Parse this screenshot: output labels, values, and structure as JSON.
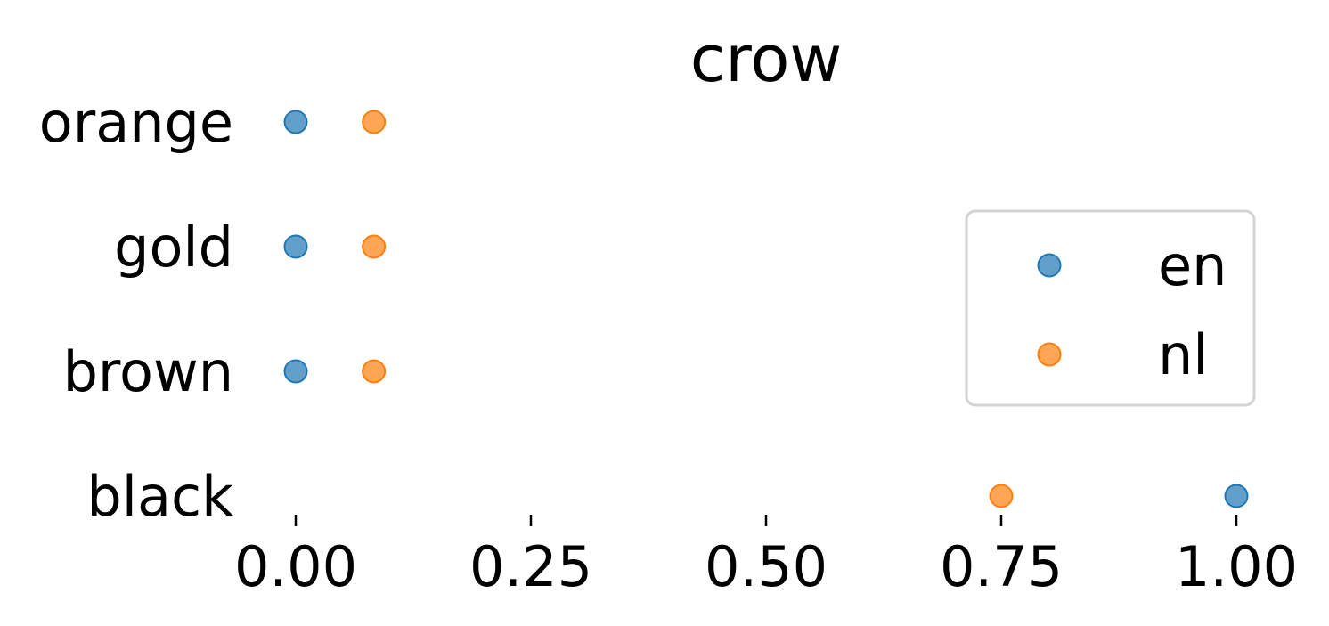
{
  "chart_data": {
    "type": "scatter",
    "title": "crow",
    "xlabel": "",
    "ylabel": "",
    "xlim": [
      0,
      1
    ],
    "x_ticks": [
      "0.00",
      "0.25",
      "0.50",
      "0.75",
      "1.00"
    ],
    "x_tick_values": [
      0,
      0.25,
      0.5,
      0.75,
      1.0
    ],
    "categories": [
      "orange",
      "gold",
      "brown",
      "black"
    ],
    "series": [
      {
        "name": "en",
        "color": "#1f77b4",
        "values": [
          0.0,
          0.0,
          0.0,
          1.0
        ]
      },
      {
        "name": "nl",
        "color": "#ff7f0e",
        "values": [
          0.083,
          0.083,
          0.083,
          0.75
        ]
      }
    ],
    "legend": {
      "position": "center-right",
      "entries": [
        "en",
        "nl"
      ]
    },
    "grid": false
  }
}
